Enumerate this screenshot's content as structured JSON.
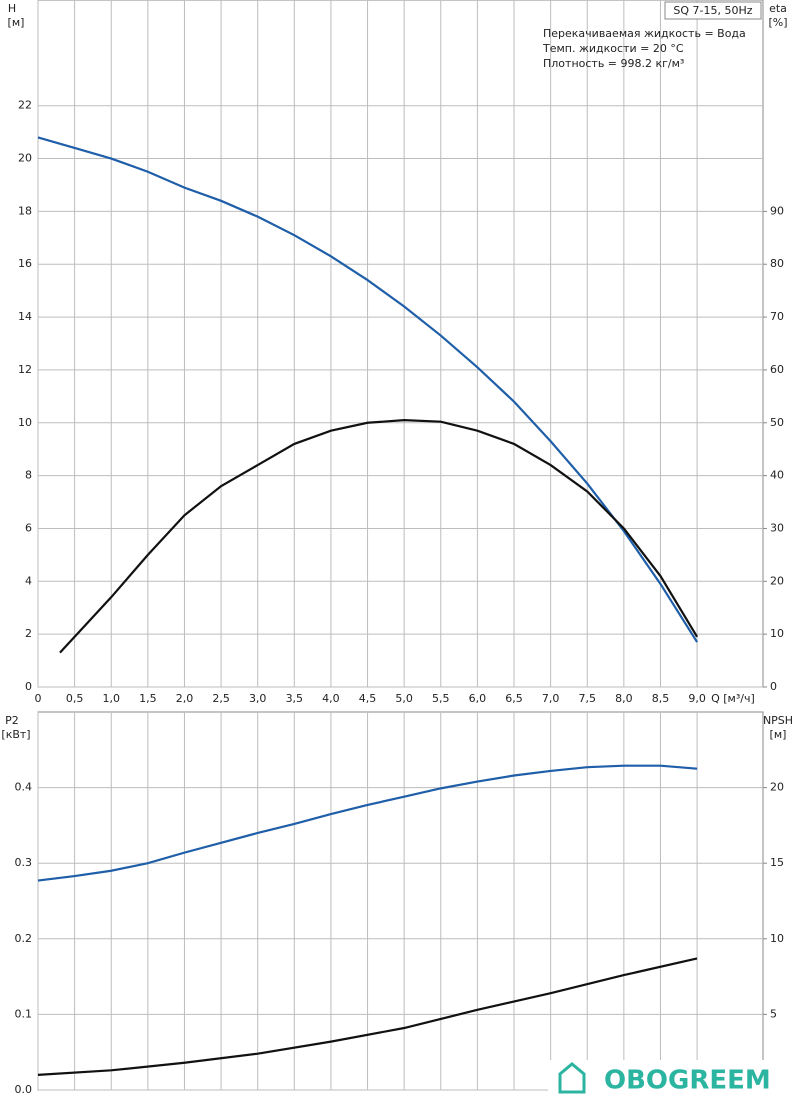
{
  "chart_data": [
    {
      "type": "line",
      "title": "SQ 7-15, 50Hz",
      "annotations": [
        "Перекачиваемая жидкость = Вода",
        "Темп. жидкости = 20 °C",
        "Плотность = 998.2 кг/м³"
      ],
      "ylabel": "H",
      "yunit": "[м]",
      "y2label": "eta",
      "y2unit": "[%]",
      "xlabel": "Q [м³/ч]",
      "xlim": [
        0,
        9.9
      ],
      "ylim": [
        0,
        26
      ],
      "y2lim": [
        0,
        130
      ],
      "grid": true,
      "xtick_labels": true,
      "xticks": [
        0,
        {
          "value": 0.5,
          "label": "0,5"
        },
        {
          "value": 1,
          "label": "1,0"
        },
        {
          "value": 1.5,
          "label": "1,5"
        },
        {
          "value": 2,
          "label": "2,0"
        },
        {
          "value": 2.5,
          "label": "2,5"
        },
        {
          "value": 3,
          "label": "3,0"
        },
        {
          "value": 3.5,
          "label": "3,5"
        },
        {
          "value": 4,
          "label": "4,0"
        },
        {
          "value": 4.5,
          "label": "4,5"
        },
        {
          "value": 5,
          "label": "5,0"
        },
        {
          "value": 5.5,
          "label": "5,5"
        },
        {
          "value": 6,
          "label": "6,0"
        },
        {
          "value": 6.5,
          "label": "6,5"
        },
        {
          "value": 7,
          "label": "7,0"
        },
        {
          "value": 7.5,
          "label": "7,5"
        },
        {
          "value": 8,
          "label": "8,0"
        },
        {
          "value": 8.5,
          "label": "8,5"
        },
        {
          "value": 9,
          "label": "9,0"
        }
      ],
      "yticks": [
        0,
        2,
        4,
        6,
        8,
        10,
        12,
        14,
        16,
        18,
        20,
        22
      ],
      "y2ticks": [
        0,
        10,
        20,
        30,
        40,
        50,
        60,
        70,
        80,
        90
      ],
      "series": [
        {
          "name": "H",
          "color": "#1f5ea8",
          "axis": "y",
          "x": [
            0,
            0.5,
            1,
            1.5,
            2,
            2.5,
            3,
            3.5,
            4,
            4.5,
            5,
            5.5,
            6,
            6.5,
            7,
            7.5,
            8,
            8.5,
            9
          ],
          "values": [
            20.8,
            20.4,
            20.0,
            19.5,
            18.9,
            18.4,
            17.8,
            17.1,
            16.3,
            15.4,
            14.4,
            13.3,
            12.1,
            10.8,
            9.3,
            7.7,
            5.9,
            3.9,
            1.7
          ]
        },
        {
          "name": "eta",
          "color": "#111111",
          "axis": "y2",
          "x": [
            0.3,
            0.5,
            1,
            1.5,
            2,
            2.5,
            3,
            3.5,
            4,
            4.5,
            5,
            5.5,
            6,
            6.5,
            7,
            7.5,
            8,
            8.5,
            9
          ],
          "values": [
            6.5,
            9.5,
            17,
            25,
            32.5,
            38,
            42,
            46,
            48.5,
            50,
            50.5,
            50.2,
            48.5,
            46,
            42,
            37,
            30,
            21,
            9.5
          ]
        }
      ]
    },
    {
      "type": "line",
      "ylabel": "P2",
      "yunit": "[кВт]",
      "y2label": "NPSH",
      "y2unit": "[м]",
      "xlim": [
        0,
        9.9
      ],
      "ylim": [
        0,
        0.5
      ],
      "y2lim": [
        0,
        25
      ],
      "grid": true,
      "xtick_labels": false,
      "xticks": [
        0,
        0.5,
        1,
        1.5,
        2,
        2.5,
        3,
        3.5,
        4,
        4.5,
        5,
        5.5,
        6,
        6.5,
        7,
        7.5,
        8,
        8.5,
        9
      ],
      "yticks": [
        {
          "value": 0,
          "label": "0.0"
        },
        0.1,
        0.2,
        0.3,
        0.4
      ],
      "y2ticks": [
        5,
        10,
        15,
        20
      ],
      "series": [
        {
          "name": "P2",
          "color": "#1f5ea8",
          "axis": "y",
          "x": [
            0,
            0.5,
            1,
            1.5,
            2,
            2.5,
            3,
            3.5,
            4,
            4.5,
            5,
            5.5,
            6,
            6.5,
            7,
            7.5,
            8,
            8.5,
            9
          ],
          "values": [
            0.277,
            0.283,
            0.29,
            0.3,
            0.314,
            0.327,
            0.34,
            0.352,
            0.365,
            0.377,
            0.388,
            0.399,
            0.408,
            0.416,
            0.422,
            0.427,
            0.429,
            0.429,
            0.425
          ]
        },
        {
          "name": "NPSH",
          "color": "#111111",
          "axis": "y2",
          "x": [
            0,
            1,
            2,
            3,
            4,
            5,
            6,
            7,
            8,
            9
          ],
          "values": [
            1.0,
            1.3,
            1.8,
            2.4,
            3.2,
            4.1,
            5.3,
            6.4,
            7.6,
            8.7
          ]
        }
      ]
    }
  ],
  "watermark": "OBOGREEM"
}
